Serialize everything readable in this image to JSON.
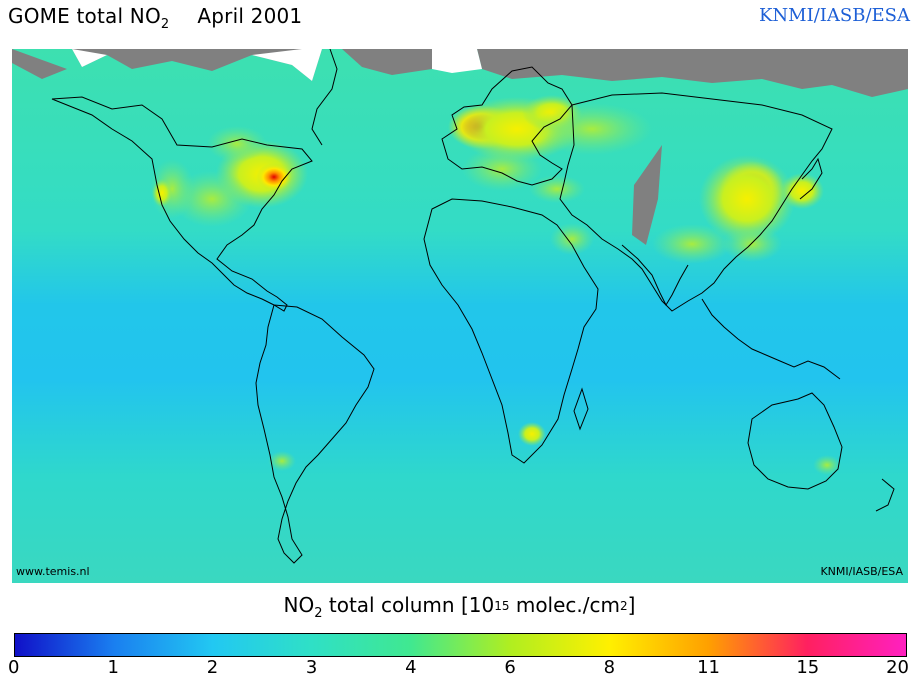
{
  "header": {
    "title_prefix": "GOME total NO",
    "title_sub": "2",
    "title_date": "April 2001",
    "agency": "KNMI/IASB/ESA"
  },
  "map": {
    "credit_left": "www.temis.nl",
    "credit_right": "KNMI/IASB/ESA",
    "background_color": "#34e2b6",
    "land_missing_color": "#808080"
  },
  "legend": {
    "title_prefix": "NO",
    "title_sub": "2",
    "title_mid": " total column [10",
    "title_sup1": "15",
    "title_mid2": " molec./cm",
    "title_sup2": "2",
    "title_suffix": "]",
    "ticks": [
      "0",
      "1",
      "2",
      "3",
      "4",
      "6",
      "8",
      "11",
      "15",
      "20"
    ],
    "colors": [
      "#1010c8",
      "#1a7ff0",
      "#22c8f2",
      "#2fe0c6",
      "#40e890",
      "#b0ee20",
      "#fff000",
      "#ffa000",
      "#ff2060",
      "#ff20c0"
    ]
  }
}
